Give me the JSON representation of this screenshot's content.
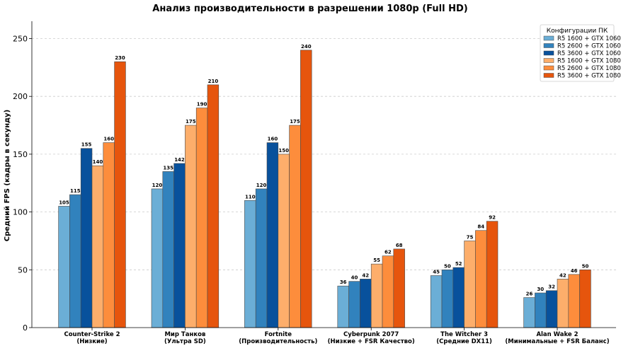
{
  "chart_data": {
    "type": "bar",
    "title": "Анализ производительности в разрешении 1080p (Full HD)",
    "ylabel": "Средний FPS (кадры в секунду)",
    "xlabel": "",
    "ylim": [
      0,
      265
    ],
    "yticks": [
      0,
      50,
      100,
      150,
      200,
      250
    ],
    "grid": "horizontal dashed",
    "legend_title": "Конфигурации ПК",
    "legend_position": "top-right",
    "categories": [
      [
        "Counter-Strike 2",
        "(Низкие)"
      ],
      [
        "Мир Танков",
        "(Ультра SD)"
      ],
      [
        "Fortnite",
        "(Производительность)"
      ],
      [
        "Cyberpunk 2077",
        "(Низкие + FSR Качество)"
      ],
      [
        "The Witcher 3",
        "(Средние DX11)"
      ],
      [
        "Alan Wake 2",
        "(Минимальные + FSR Баланс)"
      ]
    ],
    "series": [
      {
        "name": "R5 1600 + GTX 1060",
        "color": "#6baed6",
        "values": [
          105,
          120,
          110,
          36,
          45,
          26
        ]
      },
      {
        "name": "R5 2600 + GTX 1060",
        "color": "#3182bd",
        "values": [
          115,
          135,
          120,
          40,
          50,
          30
        ]
      },
      {
        "name": "R5 3600 + GTX 1060",
        "color": "#08519c",
        "values": [
          155,
          142,
          160,
          42,
          52,
          32
        ]
      },
      {
        "name": "R5 1600 + GTX 1080",
        "color": "#fdae6b",
        "values": [
          140,
          175,
          150,
          55,
          75,
          42
        ]
      },
      {
        "name": "R5 2600 + GTX 1080",
        "color": "#fd8d3c",
        "values": [
          160,
          190,
          175,
          62,
          84,
          46
        ]
      },
      {
        "name": "R5 3600 + GTX 1080",
        "color": "#e6550d",
        "values": [
          230,
          210,
          240,
          68,
          92,
          50
        ]
      }
    ]
  }
}
